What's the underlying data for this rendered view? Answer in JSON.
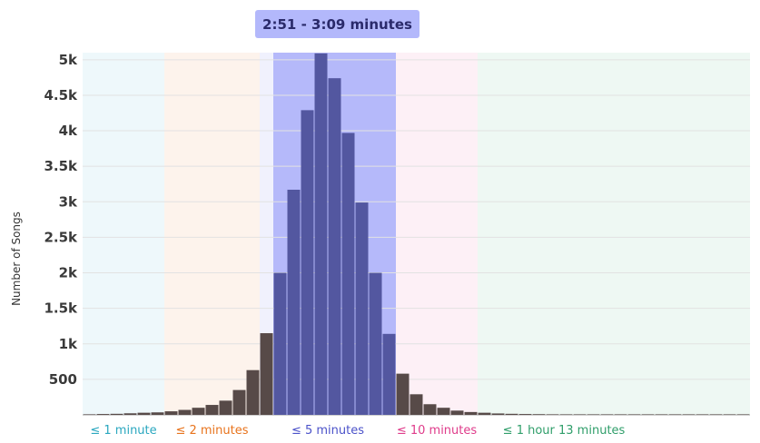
{
  "highlight": {
    "label": "2:51 - 3:09 minutes"
  },
  "chart_data": {
    "type": "bar",
    "ylabel": "Number of Songs",
    "ylim": [
      0,
      5100
    ],
    "yticks": [
      500,
      1000,
      1500,
      2000,
      2500,
      3000,
      3500,
      4000,
      4500,
      5000
    ],
    "ytick_labels": [
      "500",
      "1k",
      "1.5k",
      "2k",
      "2.5k",
      "3k",
      "3.5k",
      "4k",
      "4.5k",
      "5k"
    ],
    "bars": [
      {
        "value": 8,
        "group": "other"
      },
      {
        "value": 12,
        "group": "other"
      },
      {
        "value": 15,
        "group": "other"
      },
      {
        "value": 22,
        "group": "other"
      },
      {
        "value": 30,
        "group": "other"
      },
      {
        "value": 35,
        "group": "other"
      },
      {
        "value": 50,
        "group": "other"
      },
      {
        "value": 70,
        "group": "other"
      },
      {
        "value": 100,
        "group": "other"
      },
      {
        "value": 140,
        "group": "other"
      },
      {
        "value": 200,
        "group": "other"
      },
      {
        "value": 350,
        "group": "other"
      },
      {
        "value": 630,
        "group": "other"
      },
      {
        "value": 1150,
        "group": "other"
      },
      {
        "value": 2000,
        "group": "highlight"
      },
      {
        "value": 3170,
        "group": "highlight"
      },
      {
        "value": 4290,
        "group": "highlight"
      },
      {
        "value": 5090,
        "group": "highlight"
      },
      {
        "value": 4740,
        "group": "highlight"
      },
      {
        "value": 3970,
        "group": "highlight"
      },
      {
        "value": 2990,
        "group": "highlight"
      },
      {
        "value": 2000,
        "group": "highlight"
      },
      {
        "value": 1140,
        "group": "highlight"
      },
      {
        "value": 580,
        "group": "other"
      },
      {
        "value": 290,
        "group": "other"
      },
      {
        "value": 150,
        "group": "other"
      },
      {
        "value": 100,
        "group": "other"
      },
      {
        "value": 60,
        "group": "other"
      },
      {
        "value": 40,
        "group": "other"
      },
      {
        "value": 30,
        "group": "other"
      },
      {
        "value": 20,
        "group": "other"
      },
      {
        "value": 15,
        "group": "other"
      },
      {
        "value": 12,
        "group": "other"
      },
      {
        "value": 10,
        "group": "other"
      },
      {
        "value": 8,
        "group": "other"
      },
      {
        "value": 6,
        "group": "other"
      },
      {
        "value": 5,
        "group": "other"
      },
      {
        "value": 4,
        "group": "other"
      },
      {
        "value": 3,
        "group": "other"
      },
      {
        "value": 3,
        "group": "other"
      },
      {
        "value": 2,
        "group": "other"
      },
      {
        "value": 2,
        "group": "other"
      },
      {
        "value": 2,
        "group": "other"
      },
      {
        "value": 1,
        "group": "other"
      },
      {
        "value": 1,
        "group": "other"
      },
      {
        "value": 1,
        "group": "other"
      },
      {
        "value": 1,
        "group": "other"
      },
      {
        "value": 1,
        "group": "other"
      },
      {
        "value": 1,
        "group": "other"
      }
    ],
    "categories": [
      {
        "label": "≤ 1 minute",
        "bars": [
          0,
          6
        ],
        "color": "#2aa7bf",
        "bg": "#eef8fb"
      },
      {
        "label": "≤ 2 minutes",
        "bars": [
          6,
          13
        ],
        "color": "#e8731c",
        "bg": "#fdf3ec"
      },
      {
        "label": "≤ 5 minutes",
        "bars": [
          13,
          23
        ],
        "color": "#4b52c9",
        "bg": "#f0f1fd"
      },
      {
        "label": "≤ 10 minutes",
        "bars": [
          23,
          29
        ],
        "color": "#df3b8a",
        "bg": "#fdf0f6"
      },
      {
        "label": "≤ 1 hour 13 minutes",
        "bars": [
          29,
          49
        ],
        "color": "#2f9e6a",
        "bg": "#eef8f3"
      }
    ],
    "highlight_bars": [
      14,
      23
    ],
    "colors": {
      "bar_other": "#574a48",
      "bar_highlight": "#5357a0",
      "highlight_band": "#b5b9fa",
      "grid": "#e2e2e2"
    }
  }
}
